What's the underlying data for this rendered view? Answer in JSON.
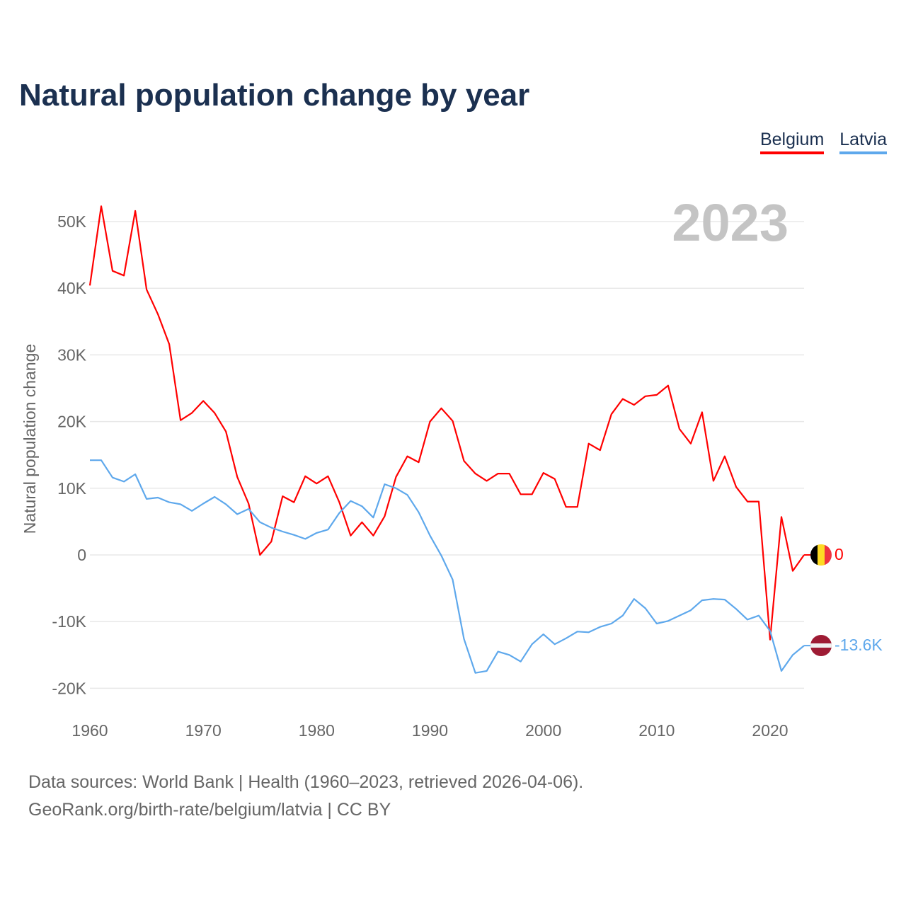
{
  "title": "Natural population change by year",
  "legend": [
    {
      "label": "Belgium",
      "color": "#ff0000"
    },
    {
      "label": "Latvia",
      "color": "#5ea8ec"
    }
  ],
  "year_label": "2023",
  "end_labels": {
    "belgium": "0",
    "latvia": "-13.6K"
  },
  "footer": {
    "line1": "Data sources: World Bank | Health (1960–2023, retrieved 2026-04-06).",
    "line2": "GeoRank.org/birth-rate/belgium/latvia | CC BY"
  },
  "chart_data": {
    "type": "line",
    "title": "Natural population change by year",
    "xlabel": "",
    "ylabel": "Natural population change",
    "xlim": [
      1960,
      2023
    ],
    "ylim": [
      -20000,
      55000
    ],
    "x_ticks": [
      1960,
      1970,
      1980,
      1990,
      2000,
      2010,
      2020
    ],
    "y_ticks": [
      -20000,
      -10000,
      0,
      10000,
      20000,
      30000,
      40000,
      50000
    ],
    "y_tick_labels": [
      "-20K",
      "-10K",
      "0",
      "10K",
      "20K",
      "30K",
      "40K",
      "50K"
    ],
    "grid": true,
    "legend_position": "top-right",
    "x_start": 1960,
    "series": [
      {
        "name": "Belgium",
        "color": "#ff0000",
        "values": [
          40400,
          52300,
          42600,
          41900,
          51600,
          39800,
          36100,
          31600,
          20200,
          21300,
          23100,
          21300,
          18500,
          11700,
          7700,
          0,
          2000,
          8800,
          7900,
          11800,
          10700,
          11800,
          7900,
          2900,
          4900,
          2900,
          5800,
          11700,
          14800,
          13900,
          20000,
          22000,
          20100,
          14100,
          12200,
          11100,
          12200,
          12200,
          9100,
          9100,
          12300,
          11400,
          7200,
          7200,
          16700,
          15700,
          21100,
          23400,
          22500,
          23800,
          24000,
          25400,
          18900,
          16700,
          21400,
          11100,
          14800,
          10200,
          8000,
          8000,
          -12700,
          5700,
          -2400,
          0
        ]
      },
      {
        "name": "Latvia",
        "color": "#5ea8ec",
        "values": [
          14200,
          14200,
          11600,
          11000,
          12100,
          8400,
          8600,
          7900,
          7600,
          6600,
          7700,
          8700,
          7600,
          6100,
          6900,
          4900,
          4100,
          3500,
          3000,
          2400,
          3300,
          3800,
          6300,
          8100,
          7300,
          5600,
          10600,
          10000,
          9000,
          6400,
          2900,
          -100,
          -3700,
          -12600,
          -17700,
          -17400,
          -14500,
          -15000,
          -16000,
          -13400,
          -11900,
          -13400,
          -12500,
          -11500,
          -11600,
          -10800,
          -10300,
          -9100,
          -6600,
          -8000,
          -10300,
          -9900,
          -9100,
          -8300,
          -6800,
          -6600,
          -6700,
          -8100,
          -9700,
          -9100,
          -11400,
          -17400,
          -15000,
          -13600
        ]
      }
    ]
  }
}
